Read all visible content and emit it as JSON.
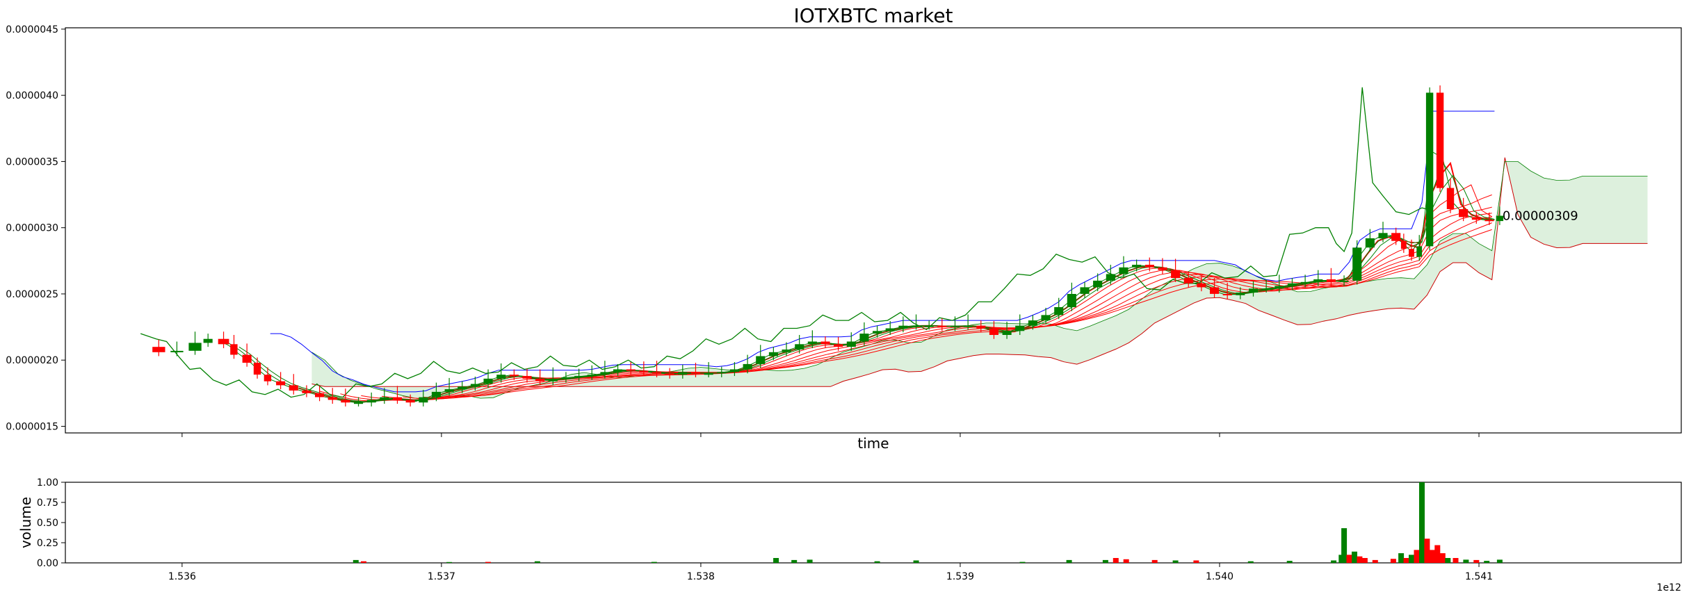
{
  "chart_data": [
    {
      "type": "candlestick",
      "title": "IOTXBTC market",
      "xlabel": "time",
      "ylabel": "",
      "xlim": [
        1.53555,
        1.54178
      ],
      "ylim": [
        1.45e-06,
        4.51e-06
      ],
      "x_ticks": [
        1.536,
        1.537,
        1.538,
        1.539,
        1.54,
        1.541
      ],
      "x_offset_label": "1e12",
      "y_ticks": [
        1.5e-06,
        2e-06,
        2.5e-06,
        3e-06,
        3.5e-06,
        4e-06,
        4.5e-06
      ],
      "y_tick_labels": [
        "0.0000015",
        "0.0000020",
        "0.0000025",
        "0.0000030",
        "0.0000035",
        "0.0000040",
        "0.0000045"
      ],
      "last_price_label": "0.00000309",
      "last_price_point": [
        1.54108,
        3.09e-06
      ],
      "colors": {
        "up": "#008000",
        "down": "#ff0000",
        "envelope": "#0000ff",
        "ribbon": "#ff0000",
        "cloud_fill": "#d9eed9",
        "cloud_line": "#cc0000"
      },
      "close_series": [
        [
          1.53584,
          2.1e-06
        ],
        [
          1.53591,
          2.06e-06
        ],
        [
          1.53598,
          2.07e-06
        ],
        [
          1.53605,
          2.13e-06
        ],
        [
          1.5361,
          2.16e-06
        ],
        [
          1.53616,
          2.12e-06
        ],
        [
          1.5362,
          2.04e-06
        ],
        [
          1.53625,
          1.98e-06
        ],
        [
          1.53629,
          1.89e-06
        ],
        [
          1.53633,
          1.84e-06
        ],
        [
          1.53638,
          1.81e-06
        ],
        [
          1.53643,
          1.77e-06
        ],
        [
          1.53648,
          1.75e-06
        ],
        [
          1.53653,
          1.72e-06
        ],
        [
          1.53658,
          1.7e-06
        ],
        [
          1.53663,
          1.68e-06
        ],
        [
          1.53668,
          1.68e-06
        ],
        [
          1.53673,
          1.7e-06
        ],
        [
          1.53678,
          1.72e-06
        ],
        [
          1.53683,
          1.7e-06
        ],
        [
          1.53688,
          1.68e-06
        ],
        [
          1.53693,
          1.72e-06
        ],
        [
          1.53698,
          1.76e-06
        ],
        [
          1.53703,
          1.78e-06
        ],
        [
          1.53708,
          1.8e-06
        ],
        [
          1.53713,
          1.82e-06
        ],
        [
          1.53718,
          1.86e-06
        ],
        [
          1.53723,
          1.89e-06
        ],
        [
          1.53728,
          1.88e-06
        ],
        [
          1.53733,
          1.86e-06
        ],
        [
          1.53738,
          1.84e-06
        ],
        [
          1.53743,
          1.86e-06
        ],
        [
          1.53748,
          1.87e-06
        ],
        [
          1.53753,
          1.88e-06
        ],
        [
          1.53758,
          1.89e-06
        ],
        [
          1.53763,
          1.91e-06
        ],
        [
          1.53768,
          1.93e-06
        ],
        [
          1.53773,
          1.92e-06
        ],
        [
          1.53778,
          1.91e-06
        ],
        [
          1.53783,
          1.9e-06
        ],
        [
          1.53788,
          1.89e-06
        ],
        [
          1.53793,
          1.91e-06
        ],
        [
          1.53798,
          1.9e-06
        ],
        [
          1.53803,
          1.9e-06
        ],
        [
          1.53808,
          1.91e-06
        ],
        [
          1.53813,
          1.93e-06
        ],
        [
          1.53818,
          1.97e-06
        ],
        [
          1.53823,
          2.03e-06
        ],
        [
          1.53828,
          2.06e-06
        ],
        [
          1.53833,
          2.08e-06
        ],
        [
          1.53838,
          2.12e-06
        ],
        [
          1.53843,
          2.14e-06
        ],
        [
          1.53848,
          2.12e-06
        ],
        [
          1.53853,
          2.1e-06
        ],
        [
          1.53858,
          2.14e-06
        ],
        [
          1.53863,
          2.2e-06
        ],
        [
          1.53868,
          2.22e-06
        ],
        [
          1.53873,
          2.24e-06
        ],
        [
          1.53878,
          2.26e-06
        ],
        [
          1.53883,
          2.26e-06
        ],
        [
          1.53888,
          2.26e-06
        ],
        [
          1.53893,
          2.25e-06
        ],
        [
          1.53898,
          2.26e-06
        ],
        [
          1.53903,
          2.26e-06
        ],
        [
          1.53908,
          2.24e-06
        ],
        [
          1.53913,
          2.19e-06
        ],
        [
          1.53918,
          2.22e-06
        ],
        [
          1.53923,
          2.26e-06
        ],
        [
          1.53928,
          2.3e-06
        ],
        [
          1.53933,
          2.34e-06
        ],
        [
          1.53938,
          2.4e-06
        ],
        [
          1.53943,
          2.5e-06
        ],
        [
          1.53948,
          2.55e-06
        ],
        [
          1.53953,
          2.6e-06
        ],
        [
          1.53958,
          2.65e-06
        ],
        [
          1.53963,
          2.7e-06
        ],
        [
          1.53968,
          2.72e-06
        ],
        [
          1.53973,
          2.7e-06
        ],
        [
          1.53978,
          2.68e-06
        ],
        [
          1.53983,
          2.62e-06
        ],
        [
          1.53988,
          2.58e-06
        ],
        [
          1.53993,
          2.55e-06
        ],
        [
          1.53998,
          2.5e-06
        ],
        [
          1.54003,
          2.49e-06
        ],
        [
          1.54008,
          2.51e-06
        ],
        [
          1.54013,
          2.54e-06
        ],
        [
          1.54018,
          2.54e-06
        ],
        [
          1.54023,
          2.56e-06
        ],
        [
          1.54028,
          2.58e-06
        ],
        [
          1.54033,
          2.59e-06
        ],
        [
          1.54038,
          2.61e-06
        ],
        [
          1.54043,
          2.59e-06
        ],
        [
          1.54048,
          2.6e-06
        ],
        [
          1.54053,
          2.85e-06
        ],
        [
          1.54058,
          2.92e-06
        ],
        [
          1.54063,
          2.96e-06
        ],
        [
          1.54068,
          2.9e-06
        ],
        [
          1.54071,
          2.84e-06
        ],
        [
          1.54074,
          2.78e-06
        ],
        [
          1.54077,
          2.86e-06
        ],
        [
          1.54081,
          4.02e-06
        ],
        [
          1.54085,
          3.3e-06
        ],
        [
          1.54089,
          3.14e-06
        ],
        [
          1.54094,
          3.08e-06
        ],
        [
          1.54099,
          3.06e-06
        ],
        [
          1.54104,
          3.05e-06
        ],
        [
          1.54108,
          3.09e-06
        ]
      ],
      "volume": {
        "ylabel": "volume",
        "ylim": [
          0,
          1
        ],
        "y_ticks": [
          0.0,
          0.25,
          0.5,
          0.75,
          1.0
        ],
        "y_tick_labels": [
          "0.00",
          "0.25",
          "0.50",
          "0.75",
          "1.00"
        ],
        "bars": [
          [
            1.53667,
            0.035,
            "up"
          ],
          [
            1.5367,
            0.02,
            "down"
          ],
          [
            1.53703,
            0.01,
            "up"
          ],
          [
            1.53718,
            0.012,
            "down"
          ],
          [
            1.53737,
            0.02,
            "up"
          ],
          [
            1.53782,
            0.012,
            "up"
          ],
          [
            1.53829,
            0.06,
            "up"
          ],
          [
            1.53836,
            0.035,
            "up"
          ],
          [
            1.53842,
            0.04,
            "up"
          ],
          [
            1.53868,
            0.02,
            "up"
          ],
          [
            1.53883,
            0.03,
            "up"
          ],
          [
            1.53924,
            0.012,
            "up"
          ],
          [
            1.53942,
            0.035,
            "up"
          ],
          [
            1.53956,
            0.035,
            "up"
          ],
          [
            1.5396,
            0.06,
            "down"
          ],
          [
            1.53964,
            0.045,
            "down"
          ],
          [
            1.53975,
            0.035,
            "down"
          ],
          [
            1.53983,
            0.03,
            "up"
          ],
          [
            1.53991,
            0.03,
            "down"
          ],
          [
            1.54012,
            0.02,
            "up"
          ],
          [
            1.54027,
            0.025,
            "up"
          ],
          [
            1.54044,
            0.03,
            "up"
          ],
          [
            1.54047,
            0.1,
            "up"
          ],
          [
            1.54048,
            0.43,
            "up"
          ],
          [
            1.5405,
            0.1,
            "down"
          ],
          [
            1.54052,
            0.14,
            "up"
          ],
          [
            1.54054,
            0.08,
            "down"
          ],
          [
            1.54056,
            0.06,
            "down"
          ],
          [
            1.5406,
            0.035,
            "down"
          ],
          [
            1.54067,
            0.05,
            "down"
          ],
          [
            1.5407,
            0.12,
            "up"
          ],
          [
            1.54072,
            0.06,
            "down"
          ],
          [
            1.54074,
            0.1,
            "up"
          ],
          [
            1.54076,
            0.16,
            "down"
          ],
          [
            1.54078,
            1.0,
            "up"
          ],
          [
            1.5408,
            0.3,
            "down"
          ],
          [
            1.54082,
            0.16,
            "down"
          ],
          [
            1.54084,
            0.22,
            "down"
          ],
          [
            1.54086,
            0.12,
            "down"
          ],
          [
            1.54088,
            0.06,
            "up"
          ],
          [
            1.54091,
            0.06,
            "down"
          ],
          [
            1.54095,
            0.04,
            "up"
          ],
          [
            1.54099,
            0.035,
            "down"
          ],
          [
            1.54103,
            0.025,
            "up"
          ],
          [
            1.54108,
            0.04,
            "up"
          ]
        ]
      }
    }
  ]
}
